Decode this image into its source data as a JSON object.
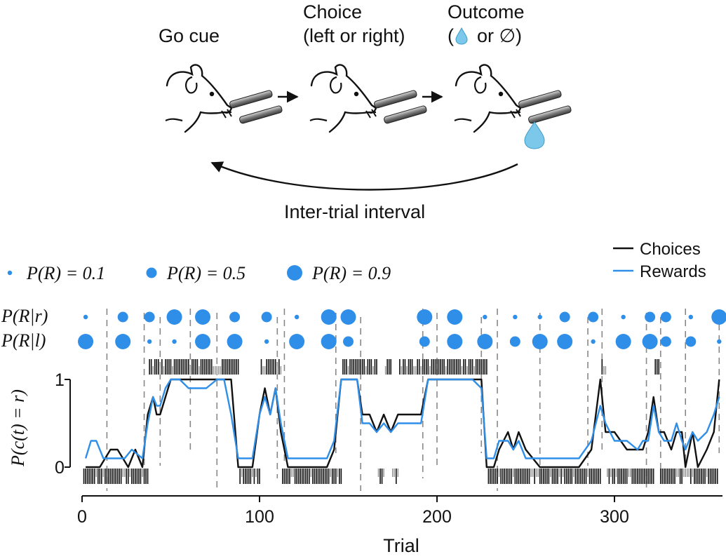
{
  "diagram": {
    "stage_1": "Go cue",
    "stage_2_line1": "Choice",
    "stage_2_line2": "(left or right)",
    "stage_3_line1": "Outcome",
    "stage_3_open": "(",
    "stage_3_or": "or ∅)",
    "loop_label": "Inter-trial interval"
  },
  "legend": {
    "choices": "Choices",
    "rewards": "Rewards",
    "p01": "P(R) = 0.1",
    "p05": "P(R) = 0.5",
    "p09": "P(R) = 0.9",
    "row_r": "P(R|r)",
    "row_l": "P(R|l)"
  },
  "colors": {
    "rewards": "#2f8fe8",
    "choices": "#111111",
    "drop": "#7cc8ea",
    "tick_gray": "#9a9a9a"
  },
  "chart_data": {
    "type": "line",
    "xlabel": "Trial",
    "ylabel": "P(c(t) = r)",
    "xlim": [
      0,
      360
    ],
    "ylim": [
      0,
      1
    ],
    "x_ticks": [
      0,
      100,
      200,
      300
    ],
    "y_ticks": [
      0,
      1
    ],
    "block_boundaries": [
      14,
      35,
      44,
      61,
      76,
      110,
      114,
      143,
      157,
      192,
      200,
      225,
      234,
      258,
      285,
      293,
      318,
      326,
      340,
      359
    ],
    "probabilities": {
      "trial": [
        2,
        23,
        38,
        52,
        68,
        86,
        104,
        121,
        139,
        150,
        193,
        210,
        227,
        244,
        258,
        272,
        288,
        305,
        320,
        329,
        343,
        359
      ],
      "p_right": [
        0.1,
        0.5,
        0.5,
        0.9,
        0.9,
        0.5,
        0.5,
        0.1,
        0.9,
        0.9,
        0.9,
        0.9,
        0.1,
        0.1,
        0.1,
        0.5,
        0.5,
        0.1,
        0.5,
        0.5,
        0.1,
        0.9
      ],
      "p_left": [
        0.9,
        0.9,
        0.1,
        0.1,
        0.9,
        0.9,
        0.1,
        0.9,
        0.9,
        0.5,
        0.5,
        0.9,
        0.9,
        0.5,
        0.9,
        0.9,
        0.1,
        0.9,
        0.9,
        0.5,
        0.5,
        0.1
      ]
    },
    "series": [
      {
        "name": "Choices",
        "x": [
          2,
          5,
          10,
          16,
          20,
          26,
          30,
          34,
          37,
          40,
          42,
          44,
          47,
          50,
          52,
          56,
          60,
          64,
          70,
          76,
          80,
          84,
          88,
          92,
          96,
          100,
          103,
          106,
          109,
          112,
          116,
          122,
          130,
          138,
          142,
          146,
          150,
          155,
          158,
          162,
          166,
          170,
          174,
          178,
          182,
          187,
          191,
          195,
          200,
          210,
          220,
          225,
          228,
          232,
          235,
          240,
          243,
          246,
          250,
          258,
          264,
          270,
          280,
          287,
          292,
          295,
          300,
          307,
          313,
          316,
          319,
          322,
          325,
          328,
          332,
          335,
          338,
          340,
          344,
          347,
          352,
          356,
          359
        ],
        "y": [
          0,
          0,
          0,
          0.2,
          0.2,
          0,
          0.2,
          0,
          0.6,
          0.8,
          0.6,
          0.6,
          0.8,
          1,
          1,
          1,
          1,
          1,
          1,
          1,
          1,
          1,
          0,
          0,
          0,
          0.6,
          0.9,
          0.6,
          0.9,
          0.4,
          0,
          0,
          0,
          0,
          0.2,
          1,
          1,
          1,
          0.6,
          0.6,
          0.4,
          0.6,
          0.4,
          0.6,
          0.6,
          0.6,
          0.6,
          1,
          1,
          1,
          1,
          1,
          0,
          0,
          0.2,
          0.4,
          0.2,
          0.4,
          0.2,
          0,
          0,
          0,
          0,
          0.2,
          1,
          0.4,
          0.4,
          0.2,
          0.2,
          0.2,
          0.4,
          0.8,
          0.4,
          0.4,
          0.2,
          0.4,
          0.4,
          0,
          0.4,
          0,
          0.2,
          0.4,
          1
        ]
      },
      {
        "name": "Rewards",
        "x": [
          2,
          5,
          8,
          12,
          18,
          24,
          28,
          34,
          37,
          40,
          42,
          44,
          47,
          50,
          55,
          60,
          65,
          70,
          76,
          80,
          84,
          88,
          92,
          96,
          100,
          103,
          106,
          109,
          112,
          116,
          122,
          130,
          138,
          142,
          146,
          150,
          155,
          158,
          162,
          166,
          170,
          174,
          178,
          182,
          187,
          191,
          195,
          200,
          210,
          220,
          225,
          228,
          232,
          235,
          240,
          243,
          246,
          250,
          258,
          264,
          270,
          280,
          287,
          292,
          295,
          300,
          307,
          313,
          316,
          319,
          322,
          325,
          328,
          332,
          335,
          338,
          340,
          344,
          347,
          352,
          356,
          359
        ],
        "y": [
          0.1,
          0.3,
          0.3,
          0.1,
          0.1,
          0.1,
          0.2,
          0.1,
          0.5,
          0.8,
          0.7,
          0.7,
          0.9,
          1,
          1,
          0.9,
          0.9,
          0.9,
          1,
          1,
          0.6,
          0.1,
          0.1,
          0.1,
          0.6,
          0.8,
          0.6,
          0.9,
          0.5,
          0.1,
          0.1,
          0.1,
          0.1,
          0.3,
          1,
          1,
          1,
          0.5,
          0.5,
          0.4,
          0.5,
          0.4,
          0.5,
          0.5,
          0.5,
          0.5,
          1,
          1,
          1,
          1,
          0.9,
          0.1,
          0.1,
          0.3,
          0.3,
          0.2,
          0.3,
          0.1,
          0.1,
          0.1,
          0.1,
          0.1,
          0.3,
          0.7,
          0.5,
          0.3,
          0.3,
          0.2,
          0.3,
          0.3,
          0.7,
          0.4,
          0.3,
          0.3,
          0.5,
          0.3,
          0.2,
          0.4,
          0.3,
          0.4,
          0.6,
          0.8
        ]
      }
    ],
    "legend_position": "top-right"
  }
}
